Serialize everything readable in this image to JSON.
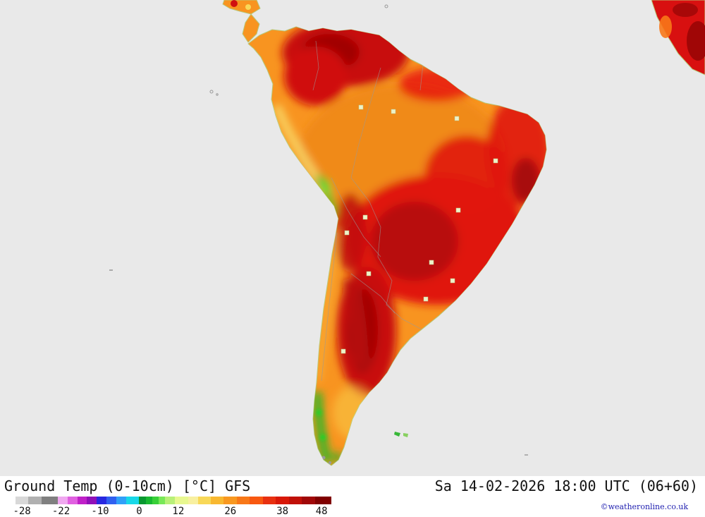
{
  "map": {
    "region_name": "South America",
    "ocean_color": "#e9e9e9",
    "land_base_color": "#f89420",
    "coastline_color": "#b8c878",
    "hot_color": "#d81010",
    "very_hot_color": "#a00606",
    "cool_mountain_color": "#28b828"
  },
  "footer": {
    "title": "Ground Temp (0-10cm) [°C] GFS",
    "datetime": "Sa 14-02-2026 18:00 UTC (06+60)",
    "copyright": "©weatheronline.co.uk"
  },
  "scale": {
    "unit": "°C",
    "min": -28,
    "max": 48,
    "labels": [
      "-28",
      "-22",
      "-10",
      "0",
      "12",
      "26",
      "38",
      "48"
    ],
    "label_positions_pct": [
      5,
      17,
      29,
      41,
      53,
      69,
      85,
      97
    ],
    "segments": [
      {
        "c": "#ffffff",
        "w": 3
      },
      {
        "c": "#d8d8d8",
        "w": 4
      },
      {
        "c": "#b0b0b0",
        "w": 4
      },
      {
        "c": "#808080",
        "w": 5
      },
      {
        "c": "#f0a8f0",
        "w": 3
      },
      {
        "c": "#e060e0",
        "w": 3
      },
      {
        "c": "#c020c8",
        "w": 3
      },
      {
        "c": "#9010b8",
        "w": 3
      },
      {
        "c": "#2828e0",
        "w": 3
      },
      {
        "c": "#3060f0",
        "w": 3
      },
      {
        "c": "#30a0f8",
        "w": 3
      },
      {
        "c": "#18d8e8",
        "w": 4
      },
      {
        "c": "#089830",
        "w": 2
      },
      {
        "c": "#18b830",
        "w": 2
      },
      {
        "c": "#38d038",
        "w": 2
      },
      {
        "c": "#78e858",
        "w": 2
      },
      {
        "c": "#b8f078",
        "w": 3
      },
      {
        "c": "#e8f890",
        "w": 4
      },
      {
        "c": "#f8f0a0",
        "w": 3
      },
      {
        "c": "#f8d858",
        "w": 4
      },
      {
        "c": "#f8b830",
        "w": 4
      },
      {
        "c": "#f89820",
        "w": 4
      },
      {
        "c": "#f87818",
        "w": 4
      },
      {
        "c": "#f85810",
        "w": 4
      },
      {
        "c": "#e83010",
        "w": 4
      },
      {
        "c": "#d81808",
        "w": 4
      },
      {
        "c": "#c01008",
        "w": 4
      },
      {
        "c": "#a00808",
        "w": 4
      },
      {
        "c": "#800000",
        "w": 5
      }
    ]
  }
}
